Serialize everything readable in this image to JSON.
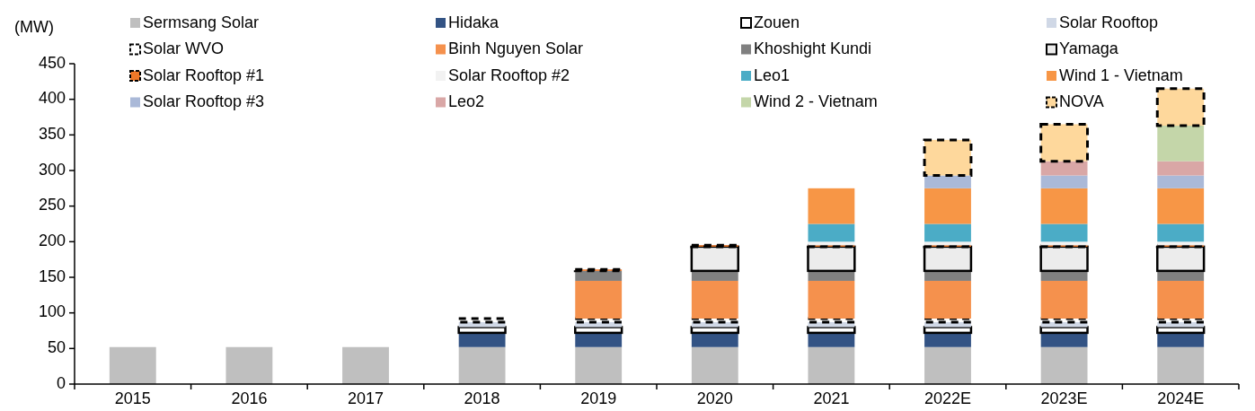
{
  "chart_data": {
    "type": "bar",
    "stacked": true,
    "ylabel": "(MW)",
    "categories": [
      "2015",
      "2016",
      "2017",
      "2018",
      "2019",
      "2020",
      "2021",
      "2022E",
      "2023E",
      "2024E"
    ],
    "ylim": [
      0,
      450
    ],
    "yticks": [
      0,
      50,
      100,
      150,
      200,
      250,
      300,
      350,
      400,
      450
    ],
    "grid": false,
    "legend": "top",
    "series": [
      {
        "name": "Sermsang Solar",
        "color": "#bfbfbf",
        "values": [
          52,
          52,
          52,
          52,
          52,
          52,
          52,
          52,
          52,
          52
        ]
      },
      {
        "name": "Hidaka",
        "color": "#335384",
        "values": [
          null,
          null,
          null,
          20,
          20,
          20,
          20,
          20,
          20,
          20
        ]
      },
      {
        "name": "Zouen",
        "color": "#ffffff",
        "line_style": "solid",
        "values": [
          null,
          null,
          null,
          8,
          8,
          8,
          8,
          8,
          8,
          8
        ]
      },
      {
        "name": "Solar Rooftop",
        "color": "#d0d8e6",
        "values": [
          null,
          null,
          null,
          7,
          7,
          7,
          7,
          7,
          7,
          7
        ]
      },
      {
        "name": "Solar WVO",
        "color": "#ffffff",
        "line_style": "dashed",
        "values": [
          null,
          null,
          null,
          5,
          5,
          5,
          5,
          5,
          5,
          5
        ]
      },
      {
        "name": "Binh Nguyen Solar",
        "color": "#f5914d",
        "values": [
          null,
          null,
          null,
          null,
          53,
          53,
          53,
          53,
          53,
          53
        ]
      },
      {
        "name": "Khoshight Kundi",
        "color": "#808080",
        "values": [
          null,
          null,
          null,
          null,
          14,
          14,
          14,
          14,
          14,
          14
        ]
      },
      {
        "name": "Yamaga",
        "color": "#ececec",
        "line_style": "solid",
        "values": [
          null,
          null,
          null,
          null,
          null,
          34,
          34,
          34,
          34,
          34
        ]
      },
      {
        "name": "Solar Rooftop #1",
        "color": "#f07828",
        "line_style": "dashed",
        "values": [
          null,
          null,
          null,
          null,
          2,
          2,
          2,
          2,
          2,
          2
        ]
      },
      {
        "name": "Solar Rooftop #2",
        "color": "#f2f2f2",
        "values": [
          null,
          null,
          null,
          null,
          null,
          null,
          5,
          5,
          5,
          5
        ]
      },
      {
        "name": "Leo1",
        "color": "#4bacc6",
        "values": [
          null,
          null,
          null,
          null,
          null,
          null,
          25,
          25,
          25,
          25
        ]
      },
      {
        "name": "Wind 1 - Vietnam",
        "color": "#f79646",
        "values": [
          null,
          null,
          null,
          null,
          null,
          null,
          50,
          50,
          50,
          50
        ]
      },
      {
        "name": "Solar Rooftop #3",
        "color": "#aab9d8",
        "values": [
          null,
          null,
          null,
          null,
          null,
          null,
          null,
          18,
          18,
          18
        ]
      },
      {
        "name": "Leo2",
        "color": "#d9a7a6",
        "values": [
          null,
          null,
          null,
          null,
          null,
          null,
          null,
          null,
          20,
          20
        ]
      },
      {
        "name": "Wind 2 - Vietnam",
        "color": "#c4d6a9",
        "values": [
          null,
          null,
          null,
          null,
          null,
          null,
          null,
          null,
          null,
          50
        ]
      },
      {
        "name": "NOVA",
        "color": "#fed89c",
        "line_style": "dashed",
        "values": [
          null,
          null,
          null,
          null,
          null,
          null,
          null,
          50,
          52,
          52
        ]
      }
    ]
  }
}
